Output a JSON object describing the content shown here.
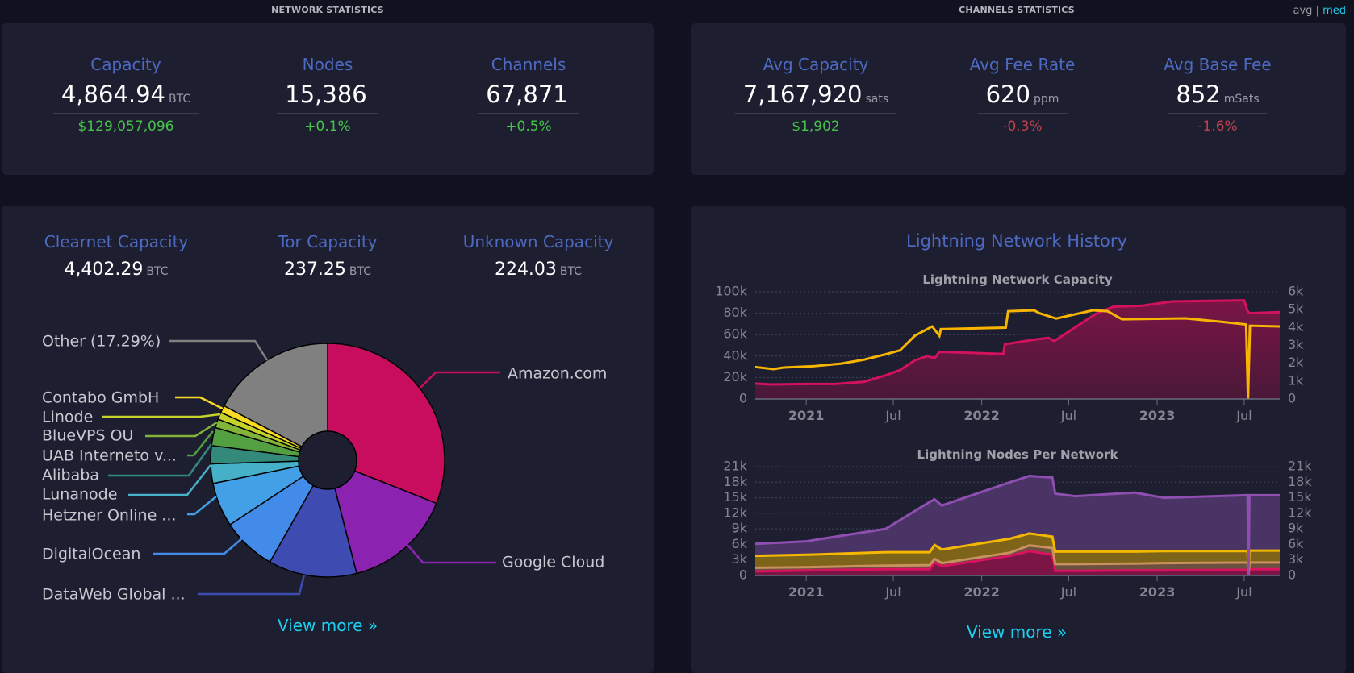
{
  "header": {
    "network_title": "NETWORK STATISTICS",
    "channels_title": "CHANNELS STATISTICS",
    "toggle": {
      "avg": "avg",
      "sep": "|",
      "med": "med"
    }
  },
  "network_stats": [
    {
      "label": "Capacity",
      "value": "4,864.94",
      "unit": "BTC",
      "sub": "$129,057,096",
      "sub_color": "#47c24a"
    },
    {
      "label": "Nodes",
      "value": "15,386",
      "unit": "",
      "sub": "+0.1%",
      "sub_color": "#47c24a"
    },
    {
      "label": "Channels",
      "value": "67,871",
      "unit": "",
      "sub": "+0.5%",
      "sub_color": "#47c24a"
    }
  ],
  "channels_stats": [
    {
      "label": "Avg Capacity",
      "value": "7,167,920",
      "unit": "sats",
      "sub": "$1,902",
      "sub_color": "#47c24a"
    },
    {
      "label": "Avg Fee Rate",
      "value": "620",
      "unit": "ppm",
      "sub": "-0.3%",
      "sub_color": "#c2404e"
    },
    {
      "label": "Avg Base Fee",
      "value": "852",
      "unit": "mSats",
      "sub": "-1.6%",
      "sub_color": "#c2404e"
    }
  ],
  "capacity_breakdown": [
    {
      "label": "Clearnet Capacity",
      "value": "4,402.29",
      "unit": "BTC"
    },
    {
      "label": "Tor Capacity",
      "value": "237.25",
      "unit": "BTC"
    },
    {
      "label": "Unknown Capacity",
      "value": "224.03",
      "unit": "BTC"
    }
  ],
  "pie_view_more": "View more »",
  "history": {
    "title": "Lightning Network History",
    "view_more": "View more »"
  },
  "chart_data": [
    {
      "type": "pie",
      "donut": true,
      "slices": [
        {
          "label": "Amazon.com",
          "share": 31.0,
          "color": "#c80d5f"
        },
        {
          "label": "Google Cloud",
          "share": 15.0,
          "color": "#8b22b0"
        },
        {
          "label": "DataWeb Global ...",
          "share": 12.2,
          "color": "#3e4bb0"
        },
        {
          "label": "DigitalOcean",
          "share": 7.5,
          "color": "#438be8"
        },
        {
          "label": "Hetzner Online ...",
          "share": 6.1,
          "color": "#42a0e6"
        },
        {
          "label": "Lunanode",
          "share": 2.7,
          "color": "#45b0c8"
        },
        {
          "label": "Alibaba",
          "share": 2.5,
          "color": "#348a7a"
        },
        {
          "label": "UAB Interneto v...",
          "share": 2.5,
          "color": "#53a043"
        },
        {
          "label": "BlueVPS OU",
          "share": 1.2,
          "color": "#82b43a"
        },
        {
          "label": "Linode",
          "share": 1.0,
          "color": "#c5d22a"
        },
        {
          "label": "Contabo GmbH",
          "share": 1.0,
          "color": "#fadb24"
        },
        {
          "label": "Other (17.29%)",
          "share": 17.29,
          "color": "#808080"
        }
      ]
    },
    {
      "type": "line",
      "title": "Lightning Network Capacity",
      "x_range": [
        "2020-09-17",
        "2023-09-13"
      ],
      "x_ticks": [
        {
          "date": "2021-01-01",
          "label": "2021",
          "bold": true
        },
        {
          "date": "2021-07-01",
          "label": "Jul",
          "bold": false
        },
        {
          "date": "2022-01-01",
          "label": "2022",
          "bold": true
        },
        {
          "date": "2022-07-01",
          "label": "Jul",
          "bold": false
        },
        {
          "date": "2023-01-01",
          "label": "2023",
          "bold": true
        },
        {
          "date": "2023-07-01",
          "label": "Jul",
          "bold": false
        }
      ],
      "y_left": {
        "range": [
          0,
          100000
        ],
        "ticks": [
          0,
          20000,
          40000,
          60000,
          80000,
          100000
        ],
        "tick_labels": [
          "0",
          "20k",
          "40k",
          "60k",
          "80k",
          "100k"
        ]
      },
      "y_right": {
        "range": [
          0,
          6000
        ],
        "ticks": [
          0,
          1000,
          2000,
          3000,
          4000,
          5000,
          6000
        ],
        "tick_labels": [
          "0",
          "1k",
          "2k",
          "3k",
          "4k",
          "5k",
          "6k"
        ]
      },
      "grid": true,
      "series": [
        {
          "axis": "left",
          "area": true,
          "color": "#d3115d",
          "fill": "#7a1545",
          "points": [
            [
              "2020-09-17",
              14400
            ],
            [
              "2020-10-20",
              13500
            ],
            [
              "2021-01-01",
              14000
            ],
            [
              "2021-03-01",
              14000
            ],
            [
              "2021-05-01",
              16000
            ],
            [
              "2021-06-15",
              22000
            ],
            [
              "2021-07-15",
              27000
            ],
            [
              "2021-08-15",
              36000
            ],
            [
              "2021-09-10",
              40000
            ],
            [
              "2021-09-25",
              38000
            ],
            [
              "2021-10-05",
              44000
            ],
            [
              "2022-02-15",
              42000
            ],
            [
              "2022-02-18",
              51000
            ],
            [
              "2022-04-15",
              55000
            ],
            [
              "2022-05-20",
              57000
            ],
            [
              "2022-06-01",
              54000
            ],
            [
              "2022-08-25",
              79000
            ],
            [
              "2022-10-01",
              86000
            ],
            [
              "2022-12-01",
              87000
            ],
            [
              "2023-02-01",
              91000
            ],
            [
              "2023-07-01",
              92000
            ],
            [
              "2023-07-08",
              82000
            ],
            [
              "2023-07-12",
              80000
            ],
            [
              "2023-09-13",
              81000
            ]
          ]
        },
        {
          "axis": "right",
          "area": false,
          "color": "#f7b500",
          "points": [
            [
              "2020-09-17",
              1790
            ],
            [
              "2020-10-25",
              1670
            ],
            [
              "2020-11-15",
              1760
            ],
            [
              "2021-01-15",
              1830
            ],
            [
              "2021-03-15",
              1980
            ],
            [
              "2021-05-01",
              2200
            ],
            [
              "2021-06-15",
              2500
            ],
            [
              "2021-07-15",
              2720
            ],
            [
              "2021-08-15",
              3540
            ],
            [
              "2021-09-20",
              4060
            ],
            [
              "2021-10-05",
              3540
            ],
            [
              "2021-10-08",
              3910
            ],
            [
              "2022-02-20",
              3990
            ],
            [
              "2022-02-25",
              4910
            ],
            [
              "2022-04-20",
              4960
            ],
            [
              "2022-05-01",
              4800
            ],
            [
              "2022-06-05",
              4500
            ],
            [
              "2022-08-20",
              4960
            ],
            [
              "2022-09-20",
              4910
            ],
            [
              "2022-10-20",
              4460
            ],
            [
              "2023-03-01",
              4510
            ],
            [
              "2023-05-15",
              4320
            ],
            [
              "2023-07-05",
              4170
            ],
            [
              "2023-07-09",
              0
            ],
            [
              "2023-07-13",
              4100
            ],
            [
              "2023-09-13",
              4060
            ]
          ]
        }
      ]
    },
    {
      "type": "area",
      "stacked": true,
      "title": "Lightning Nodes Per Network",
      "x_range": [
        "2020-09-17",
        "2023-09-13"
      ],
      "x_ticks": [
        {
          "date": "2021-01-01",
          "label": "2021",
          "bold": true
        },
        {
          "date": "2021-07-01",
          "label": "Jul",
          "bold": false
        },
        {
          "date": "2022-01-01",
          "label": "2022",
          "bold": true
        },
        {
          "date": "2022-07-01",
          "label": "Jul",
          "bold": false
        },
        {
          "date": "2023-01-01",
          "label": "2023",
          "bold": true
        },
        {
          "date": "2023-07-01",
          "label": "Jul",
          "bold": false
        }
      ],
      "y_left": {
        "range": [
          0,
          21000
        ],
        "ticks": [
          0,
          3000,
          6000,
          9000,
          12000,
          15000,
          18000,
          21000
        ],
        "tick_labels": [
          "0",
          "3k",
          "6k",
          "9k",
          "12k",
          "15k",
          "18k",
          "21k"
        ]
      },
      "y_right": {
        "range": [
          0,
          21000
        ],
        "ticks": [
          0,
          3000,
          6000,
          9000,
          12000,
          15000,
          18000,
          21000
        ],
        "tick_labels": [
          "0",
          "3k",
          "6k",
          "9k",
          "12k",
          "15k",
          "18k",
          "21k"
        ]
      },
      "grid": true,
      "x": [
        "2020-09-17",
        "2021-01-01",
        "2021-06-15",
        "2021-09-15",
        "2021-09-25",
        "2021-10-10",
        "2022-03-01",
        "2022-04-10",
        "2022-05-28",
        "2022-06-03",
        "2022-07-15",
        "2022-11-15",
        "2023-01-15",
        "2023-07-08",
        "2023-07-10",
        "2023-07-12",
        "2023-09-13"
      ],
      "series": [
        {
          "color": "#d8125f",
          "fill": "#7a1545",
          "values": [
            800,
            1000,
            1200,
            1200,
            2500,
            1800,
            3800,
            4700,
            4000,
            900,
            900,
            1000,
            1000,
            1100,
            0,
            1200,
            1200
          ]
        },
        {
          "color": "#c8915e",
          "fill": "#6b5040",
          "values": [
            700,
            600,
            700,
            800,
            700,
            600,
            600,
            1100,
            1300,
            1300,
            1300,
            1300,
            1400,
            1400,
            0,
            1300,
            1300
          ]
        },
        {
          "color": "#f5b800",
          "fill": "#7d6418",
          "values": [
            2300,
            2400,
            2600,
            2500,
            2700,
            2600,
            2700,
            2300,
            2200,
            2400,
            2400,
            2300,
            2300,
            2200,
            0,
            2300,
            2300
          ]
        },
        {
          "color": "#8e4fb0",
          "fill": "#4a3466",
          "values": [
            2300,
            2600,
            4500,
            9700,
            8800,
            8500,
            10900,
            11100,
            11400,
            11200,
            10700,
            11400,
            10300,
            10800,
            0,
            10700,
            10700
          ]
        }
      ]
    }
  ]
}
